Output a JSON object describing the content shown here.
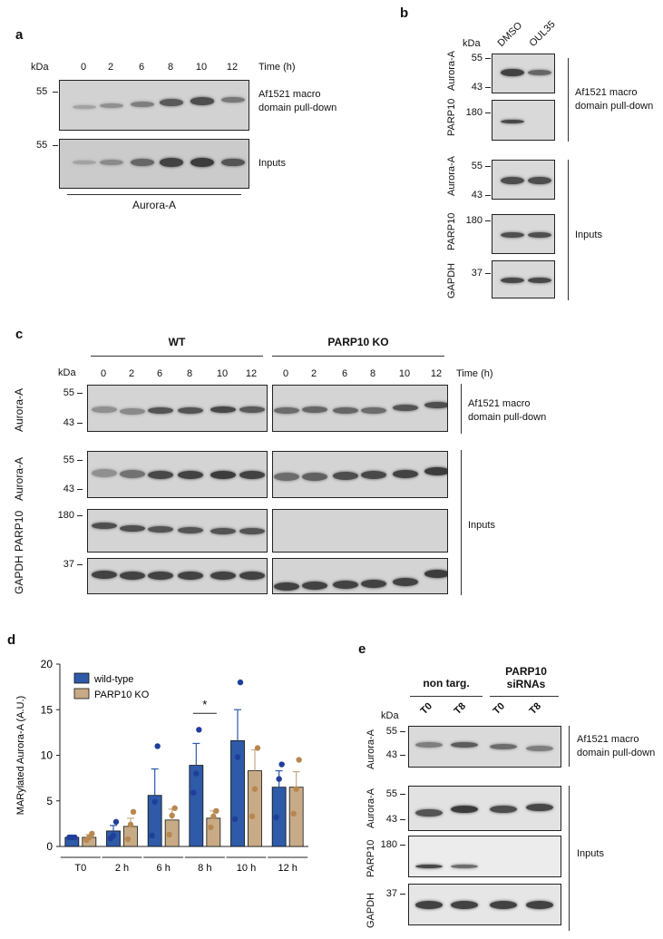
{
  "panels": {
    "a": {
      "label": "a",
      "kda": "kDa",
      "times": [
        "0",
        "2",
        "6",
        "8",
        "10",
        "12"
      ],
      "time_unit": "Time (h)",
      "mw1": "55",
      "mw2": "55",
      "pulldown_label": "Af1521 macro\ndomain pull-down",
      "inputs_label": "Inputs",
      "protein": "Aurora-A",
      "pulldown_intensity": [
        0.15,
        0.3,
        0.45,
        0.75,
        0.85,
        0.5
      ],
      "input_intensity": [
        0.15,
        0.35,
        0.65,
        0.95,
        1.0,
        0.8
      ]
    },
    "b": {
      "label": "b",
      "kda": "kDa",
      "lanes": [
        "DMSO",
        "OUL35"
      ],
      "rows": [
        {
          "name": "Aurora-A",
          "mw": [
            "55",
            "43"
          ]
        },
        {
          "name": "PARP10",
          "mw": [
            "180"
          ]
        },
        {
          "name": "Aurora-A",
          "mw": [
            "55",
            "43"
          ]
        },
        {
          "name": "PARP10",
          "mw": [
            "180"
          ]
        },
        {
          "name": "GAPDH",
          "mw": [
            "37"
          ]
        }
      ],
      "pulldown_label": "Af1521 macro\ndomain pull-down",
      "inputs_label": "Inputs"
    },
    "c": {
      "label": "c",
      "kda": "kDa",
      "group_wt": "WT",
      "group_ko": "PARP10 KO",
      "times": [
        "0",
        "2",
        "6",
        "8",
        "10",
        "12"
      ],
      "time_unit": "Time (h)",
      "rows": [
        {
          "name": "Aurora-A",
          "mw": [
            "55",
            "43"
          ]
        },
        {
          "name": "Aurora-A",
          "mw": [
            "55",
            "43"
          ]
        },
        {
          "name": "PARP10",
          "mw": [
            "180"
          ]
        },
        {
          "name": "GAPDH",
          "mw": [
            "37"
          ]
        }
      ],
      "pulldown_label": "Af1521 macro\ndomain pull-down",
      "inputs_label": "Inputs"
    },
    "d": {
      "label": "d",
      "significance": "*"
    },
    "e": {
      "label": "e",
      "kda": "kDa",
      "group1": "non targ.",
      "group2": "PARP10\nsiRNAs",
      "lanes": [
        "T0",
        "T8",
        "T0",
        "T8"
      ],
      "rows": [
        {
          "name": "Aurora-A",
          "mw": [
            "55",
            "43"
          ]
        },
        {
          "name": "Aurora-A",
          "mw": [
            "55",
            "43"
          ]
        },
        {
          "name": "PARP10",
          "mw": [
            "180"
          ]
        },
        {
          "name": "GAPDH",
          "mw": [
            "37"
          ]
        }
      ],
      "pulldown_label": "Af1521 macro\ndomain pull-down",
      "inputs_label": "Inputs"
    }
  },
  "chart_data": {
    "type": "bar",
    "ylabel": "MARylated Aurora-A (A.U.)",
    "xlabel": "",
    "ylim": [
      0,
      20
    ],
    "yticks": [
      0,
      5,
      10,
      15,
      20
    ],
    "categories": [
      "T0",
      "2 h",
      "6 h",
      "8 h",
      "10 h",
      "12 h"
    ],
    "series": [
      {
        "name": "wild-type",
        "color": "#2e5aa8",
        "values": [
          1.0,
          1.7,
          5.6,
          8.9,
          11.6,
          6.5
        ],
        "errors": [
          0.05,
          0.6,
          2.9,
          2.4,
          3.4,
          1.8
        ],
        "points": [
          [
            1.0,
            1.0,
            1.0
          ],
          [
            0.9,
            1.2,
            2.7
          ],
          [
            1.2,
            4.9,
            11.0
          ],
          [
            5.9,
            8.0,
            12.8
          ],
          [
            3.0,
            9.8,
            18.0
          ],
          [
            3.2,
            7.4,
            9.0
          ]
        ]
      },
      {
        "name": "PARP10 KO",
        "color": "#c8ab86",
        "values": [
          1.0,
          2.2,
          2.9,
          3.1,
          8.3,
          6.5
        ],
        "errors": [
          0.3,
          0.9,
          1.2,
          0.8,
          2.3,
          1.7
        ],
        "points": [
          [
            0.7,
            1.0,
            1.4
          ],
          [
            0.8,
            2.4,
            3.8
          ],
          [
            1.3,
            3.4,
            4.2
          ],
          [
            2.1,
            3.3,
            3.9
          ],
          [
            3.3,
            6.3,
            10.8
          ],
          [
            3.6,
            6.3,
            9.5
          ]
        ]
      }
    ],
    "legend": "top-left",
    "grid": false,
    "annotations": [
      {
        "text": "*",
        "category": "8 h"
      }
    ]
  }
}
